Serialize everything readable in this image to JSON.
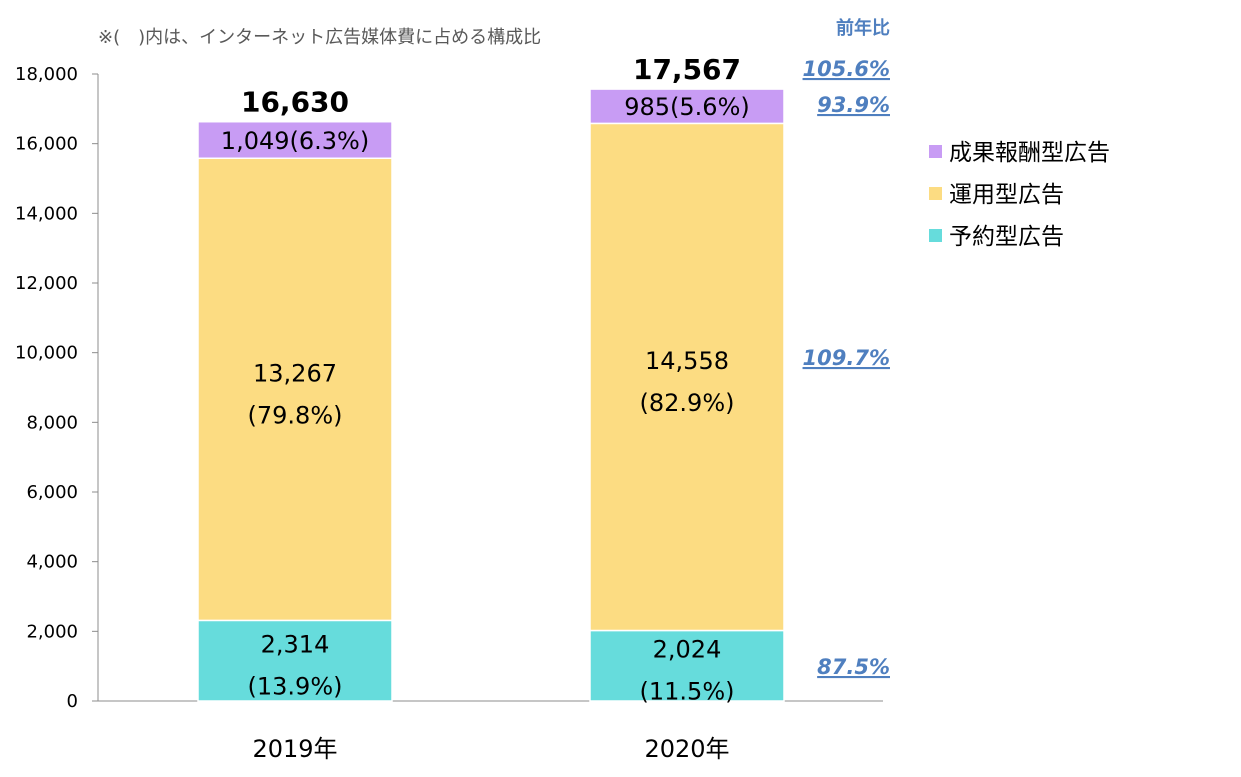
{
  "note": "※(　)内は、インターネット広告媒体費に占める構成比",
  "chart_data": {
    "type": "bar",
    "stacked": true,
    "categories": [
      "2019年",
      "2020年"
    ],
    "ylim": [
      0,
      18000
    ],
    "yticks": [
      "0",
      "2,000",
      "4,000",
      "6,000",
      "8,000",
      "10,000",
      "12,000",
      "14,000",
      "16,000",
      "18,000"
    ],
    "series": [
      {
        "name": "予約型広告",
        "color": "#66dcdc",
        "values": [
          2314,
          2024
        ],
        "labels": [
          {
            "value": "2,314",
            "share": "(13.9%)"
          },
          {
            "value": "2,024",
            "share": "(11.5%)"
          }
        ],
        "yoy": "87.5%"
      },
      {
        "name": "運用型広告",
        "color": "#fcdc82",
        "values": [
          13267,
          14558
        ],
        "labels": [
          {
            "value": "13,267",
            "share": "(79.8%)"
          },
          {
            "value": "14,558",
            "share": "(82.9%)"
          }
        ],
        "yoy": "109.7%"
      },
      {
        "name": "成果報酬型広告",
        "color": "#c89cf4",
        "values": [
          1049,
          985
        ],
        "labels": [
          {
            "value": "1,049(6.3%)"
          },
          {
            "value": "985(5.6%)"
          }
        ],
        "yoy": "93.9%"
      }
    ],
    "totals": [
      "16,630",
      "17,567"
    ],
    "yoy_header": "前年比",
    "yoy_total": "105.6%",
    "legend": {
      "position": "right",
      "items": [
        "成果報酬型広告",
        "運用型広告",
        "予約型広告"
      ]
    }
  }
}
